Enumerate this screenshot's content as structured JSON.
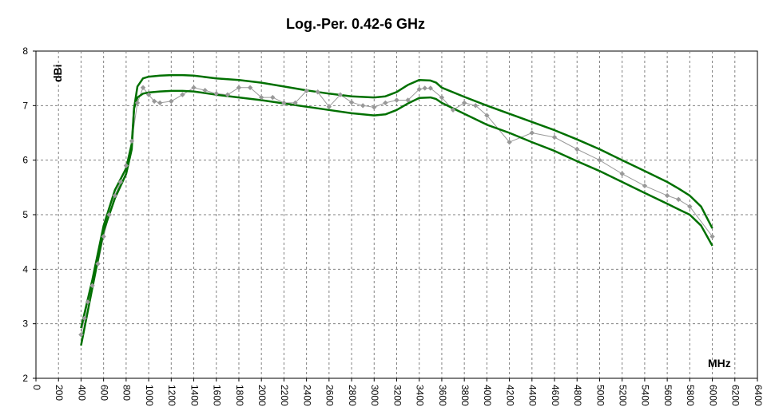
{
  "chart_data": {
    "type": "line",
    "title": "Log.-Per. 0.42-6 GHz",
    "xlabel": "MHz",
    "ylabel": "dBi",
    "xlim": [
      0,
      6400
    ],
    "ylim": [
      2,
      8
    ],
    "x_ticks": [
      0,
      200,
      400,
      600,
      800,
      1000,
      1200,
      1400,
      1600,
      1800,
      2000,
      2200,
      2400,
      2600,
      2800,
      3000,
      3200,
      3400,
      3600,
      3800,
      4000,
      4200,
      4400,
      4600,
      4800,
      5000,
      5200,
      5400,
      5600,
      5800,
      6000,
      6200,
      6400
    ],
    "y_ticks": [
      2,
      3,
      4,
      5,
      6,
      7,
      8
    ],
    "grid": true,
    "legend": "none",
    "series": [
      {
        "color": "#999999",
        "marker": "diamond",
        "x": [
          400,
          430,
          460,
          500,
          550,
          600,
          650,
          700,
          750,
          800,
          850,
          900,
          950,
          1000,
          1050,
          1100,
          1200,
          1300,
          1400,
          1500,
          1600,
          1700,
          1800,
          1900,
          2000,
          2100,
          2200,
          2300,
          2400,
          2500,
          2600,
          2700,
          2800,
          2900,
          3000,
          3100,
          3200,
          3300,
          3400,
          3450,
          3500,
          3600,
          3700,
          3800,
          3900,
          4000,
          4200,
          4400,
          4600,
          4800,
          5000,
          5200,
          5400,
          5600,
          5700,
          5800,
          6000
        ],
        "y": [
          2.8,
          3.1,
          3.4,
          3.7,
          4.1,
          4.6,
          5.0,
          5.35,
          5.6,
          5.9,
          6.35,
          7.05,
          7.33,
          7.2,
          7.08,
          7.05,
          7.08,
          7.2,
          7.33,
          7.28,
          7.22,
          7.2,
          7.33,
          7.33,
          7.15,
          7.15,
          7.05,
          7.05,
          7.27,
          7.25,
          6.98,
          7.2,
          7.06,
          7.0,
          6.97,
          7.05,
          7.1,
          7.1,
          7.3,
          7.32,
          7.32,
          7.15,
          6.92,
          7.05,
          7.0,
          6.82,
          6.33,
          6.5,
          6.42,
          6.2,
          6.0,
          5.75,
          5.53,
          5.35,
          5.28,
          5.15,
          4.6
        ]
      },
      {
        "color": "#007000",
        "x": [
          400,
          500,
          600,
          700,
          800,
          850,
          870,
          900,
          950,
          1000,
          1100,
          1200,
          1300,
          1400,
          1600,
          1800,
          2000,
          2200,
          2400,
          2600,
          2800,
          3000,
          3100,
          3200,
          3300,
          3400,
          3500,
          3550,
          3600,
          3800,
          4000,
          4200,
          4400,
          4600,
          4800,
          5000,
          5200,
          5400,
          5600,
          5700,
          5800,
          5900,
          6000
        ],
        "y": [
          2.92,
          3.8,
          4.8,
          5.45,
          5.85,
          6.3,
          6.95,
          7.35,
          7.5,
          7.53,
          7.55,
          7.56,
          7.56,
          7.55,
          7.5,
          7.47,
          7.42,
          7.35,
          7.28,
          7.22,
          7.17,
          7.15,
          7.17,
          7.25,
          7.38,
          7.47,
          7.46,
          7.42,
          7.33,
          7.16,
          7.0,
          6.85,
          6.7,
          6.55,
          6.38,
          6.2,
          6.0,
          5.8,
          5.6,
          5.48,
          5.35,
          5.15,
          4.75
        ]
      },
      {
        "color": "#007000",
        "x": [
          400,
          500,
          600,
          700,
          800,
          850,
          870,
          900,
          950,
          1000,
          1100,
          1200,
          1300,
          1400,
          1600,
          1800,
          2000,
          2200,
          2400,
          2600,
          2800,
          3000,
          3100,
          3200,
          3300,
          3400,
          3500,
          3550,
          3600,
          3800,
          4000,
          4200,
          4400,
          4600,
          4800,
          5000,
          5200,
          5400,
          5600,
          5700,
          5800,
          5900,
          6000
        ],
        "y": [
          2.6,
          3.65,
          4.7,
          5.3,
          5.75,
          6.2,
          6.95,
          7.15,
          7.22,
          7.24,
          7.26,
          7.27,
          7.27,
          7.26,
          7.2,
          7.15,
          7.1,
          7.04,
          6.98,
          6.92,
          6.86,
          6.82,
          6.84,
          6.92,
          7.04,
          7.14,
          7.15,
          7.12,
          7.05,
          6.85,
          6.65,
          6.5,
          6.33,
          6.17,
          5.98,
          5.8,
          5.6,
          5.4,
          5.2,
          5.1,
          5.0,
          4.8,
          4.43
        ]
      }
    ]
  }
}
